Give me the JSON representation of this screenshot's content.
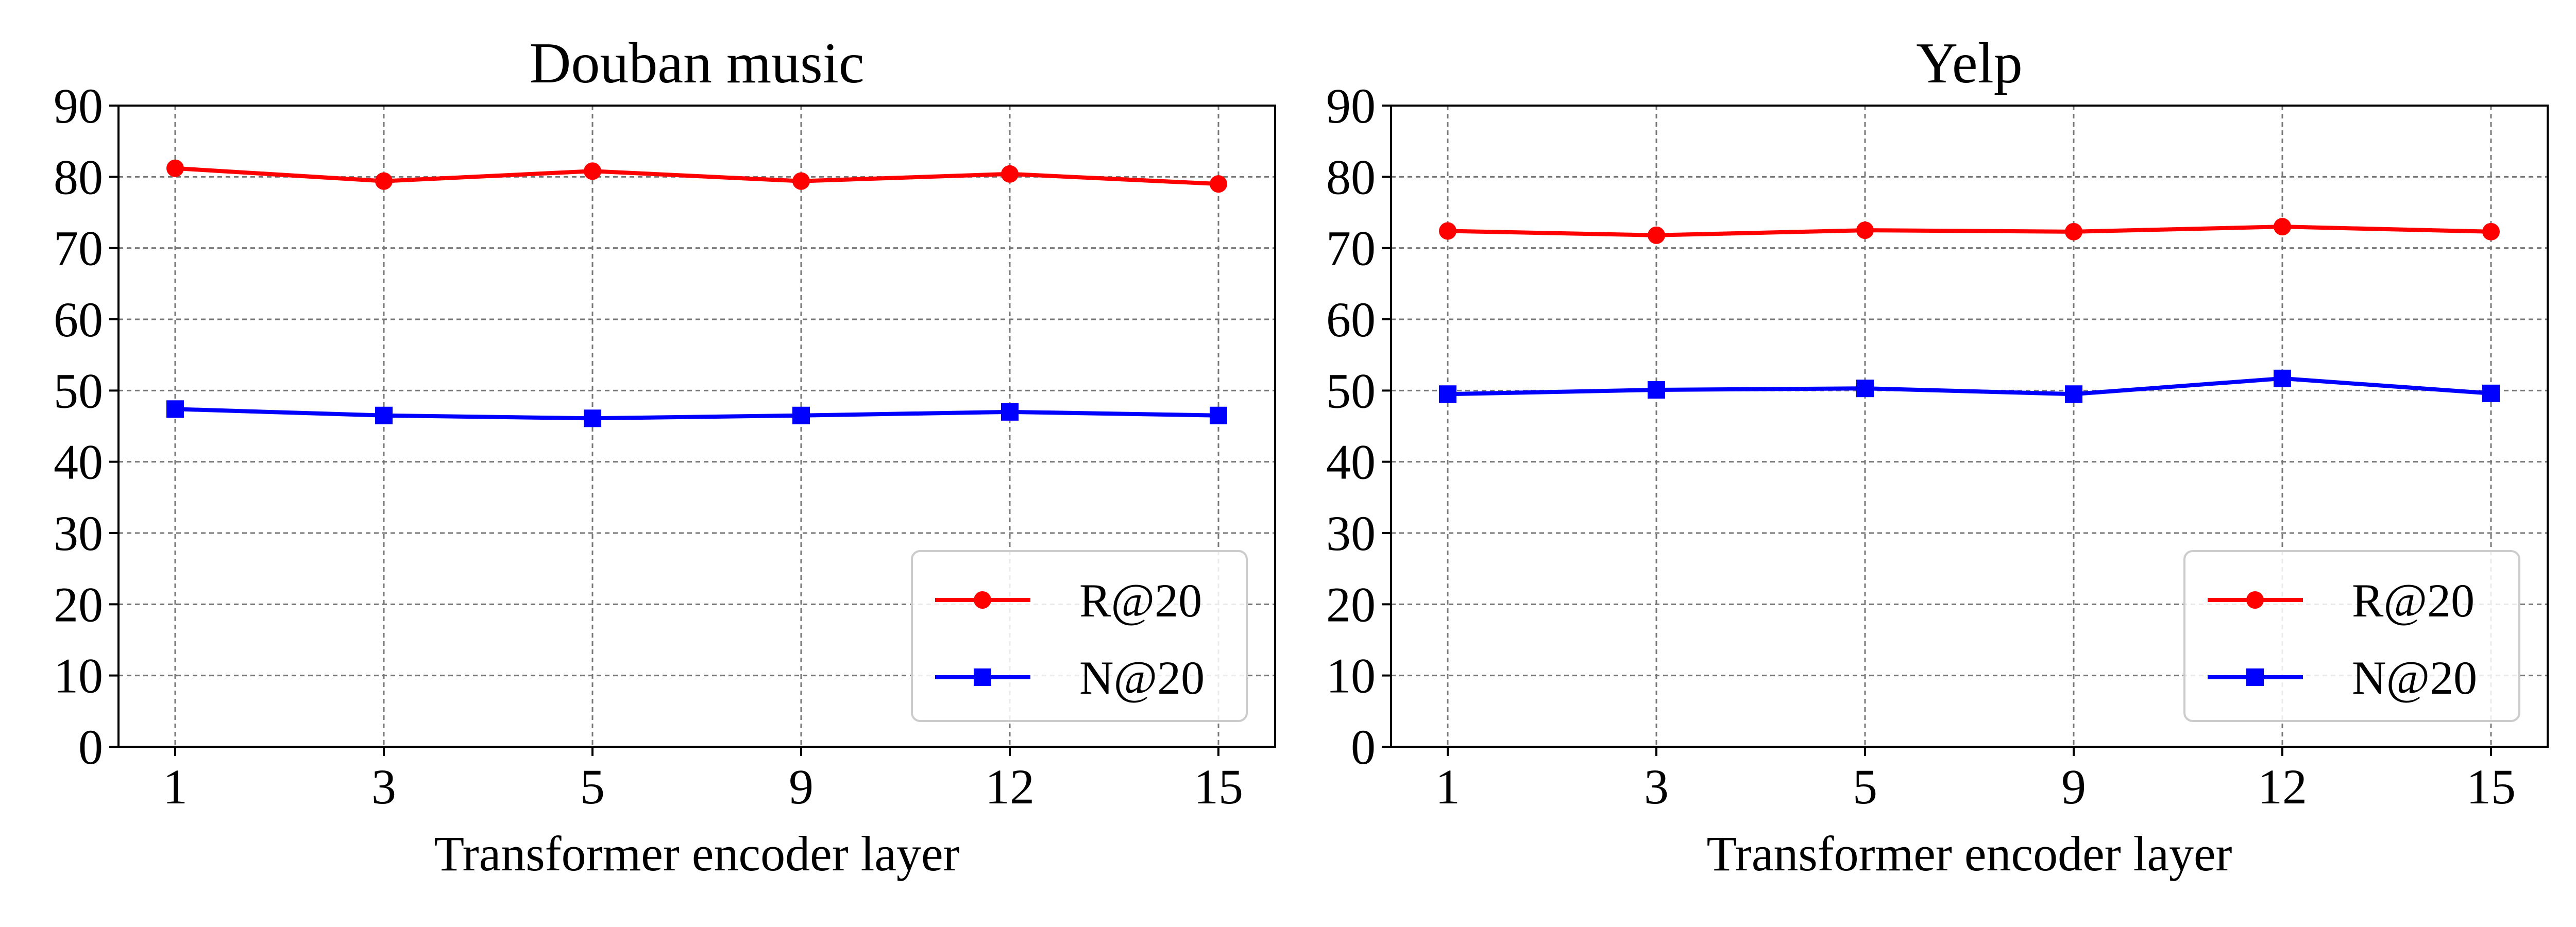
{
  "chart_data": [
    {
      "type": "line",
      "title": "Douban music",
      "xlabel": "Transformer encoder layer",
      "ylabel": "",
      "categories": [
        "1",
        "3",
        "5",
        "9",
        "12",
        "15"
      ],
      "ylim": [
        0,
        90
      ],
      "yticks": [
        "0",
        "10",
        "20",
        "30",
        "40",
        "50",
        "60",
        "70",
        "80",
        "90"
      ],
      "grid": true,
      "legend_position": "lower-right",
      "series": [
        {
          "name": "R@20",
          "color": "#ff0000",
          "marker": "circle",
          "values": [
            81.2,
            79.4,
            80.8,
            79.4,
            80.4,
            79.0
          ]
        },
        {
          "name": "N@20",
          "color": "#0000ff",
          "marker": "square",
          "values": [
            47.4,
            46.5,
            46.1,
            46.5,
            47.0,
            46.5
          ]
        }
      ]
    },
    {
      "type": "line",
      "title": "Yelp",
      "xlabel": "Transformer encoder layer",
      "ylabel": "",
      "categories": [
        "1",
        "3",
        "5",
        "9",
        "12",
        "15"
      ],
      "ylim": [
        0,
        90
      ],
      "yticks": [
        "0",
        "10",
        "20",
        "30",
        "40",
        "50",
        "60",
        "70",
        "80",
        "90"
      ],
      "grid": true,
      "legend_position": "lower-right",
      "series": [
        {
          "name": "R@20",
          "color": "#ff0000",
          "marker": "circle",
          "values": [
            72.4,
            71.8,
            72.5,
            72.3,
            73.0,
            72.3
          ]
        },
        {
          "name": "N@20",
          "color": "#0000ff",
          "marker": "square",
          "values": [
            49.5,
            50.1,
            50.3,
            49.5,
            51.7,
            49.6
          ]
        }
      ]
    }
  ]
}
